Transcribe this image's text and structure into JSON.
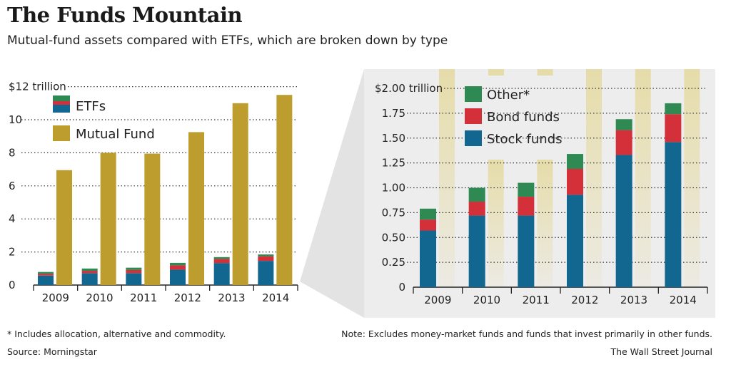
{
  "title": "The Funds Mountain",
  "subtitle": "Mutual-fund assets compared with ETFs, which are broken down by type",
  "footnote": "* Includes allocation, alternative and commodity.",
  "source": "Source: Morningstar",
  "note": "Note: Excludes money-market funds and funds that invest primarily in other funds.",
  "credit": "The Wall Street Journal",
  "colors": {
    "stock": "#11678f",
    "bond": "#d3303a",
    "other": "#2e8a52",
    "mutual": "#bd9d2e",
    "panel_bg": "#ededed",
    "pillar": "#e6dca9"
  },
  "chart_data": [
    {
      "type": "bar",
      "categories": [
        "2009",
        "2010",
        "2011",
        "2012",
        "2013",
        "2014"
      ],
      "ylim": [
        0,
        12
      ],
      "ytick_labels": [
        "$12 trillion",
        "10",
        "8",
        "6",
        "4",
        "2",
        "0"
      ],
      "ytick_values": [
        12,
        10,
        8,
        6,
        4,
        2,
        0
      ],
      "legend": [
        "ETFs",
        "Mutual Fund"
      ],
      "series": [
        {
          "name": "ETFs",
          "values": [
            0.79,
            1.0,
            1.05,
            1.34,
            1.69,
            1.85
          ]
        },
        {
          "name": "Mutual Fund",
          "values": [
            6.95,
            8.0,
            7.95,
            9.25,
            11.0,
            11.5
          ]
        }
      ]
    },
    {
      "type": "bar",
      "stacked": true,
      "categories": [
        "2009",
        "2010",
        "2011",
        "2012",
        "2013",
        "2014"
      ],
      "ylim": [
        0,
        2.0
      ],
      "ytick_labels": [
        "$2.00 trillion",
        "1.75",
        "1.50",
        "1.25",
        "1.00",
        "0.75",
        "0.50",
        "0.25",
        "0"
      ],
      "ytick_values": [
        2.0,
        1.75,
        1.5,
        1.25,
        1.0,
        0.75,
        0.5,
        0.25,
        0
      ],
      "legend": [
        "Other*",
        "Bond funds",
        "Stock funds"
      ],
      "series": [
        {
          "name": "Stock funds",
          "values": [
            0.57,
            0.72,
            0.72,
            0.93,
            1.33,
            1.46
          ]
        },
        {
          "name": "Bond funds",
          "values": [
            0.11,
            0.14,
            0.19,
            0.26,
            0.25,
            0.28
          ]
        },
        {
          "name": "Other*",
          "values": [
            0.11,
            0.14,
            0.14,
            0.15,
            0.11,
            0.11
          ]
        }
      ]
    }
  ]
}
